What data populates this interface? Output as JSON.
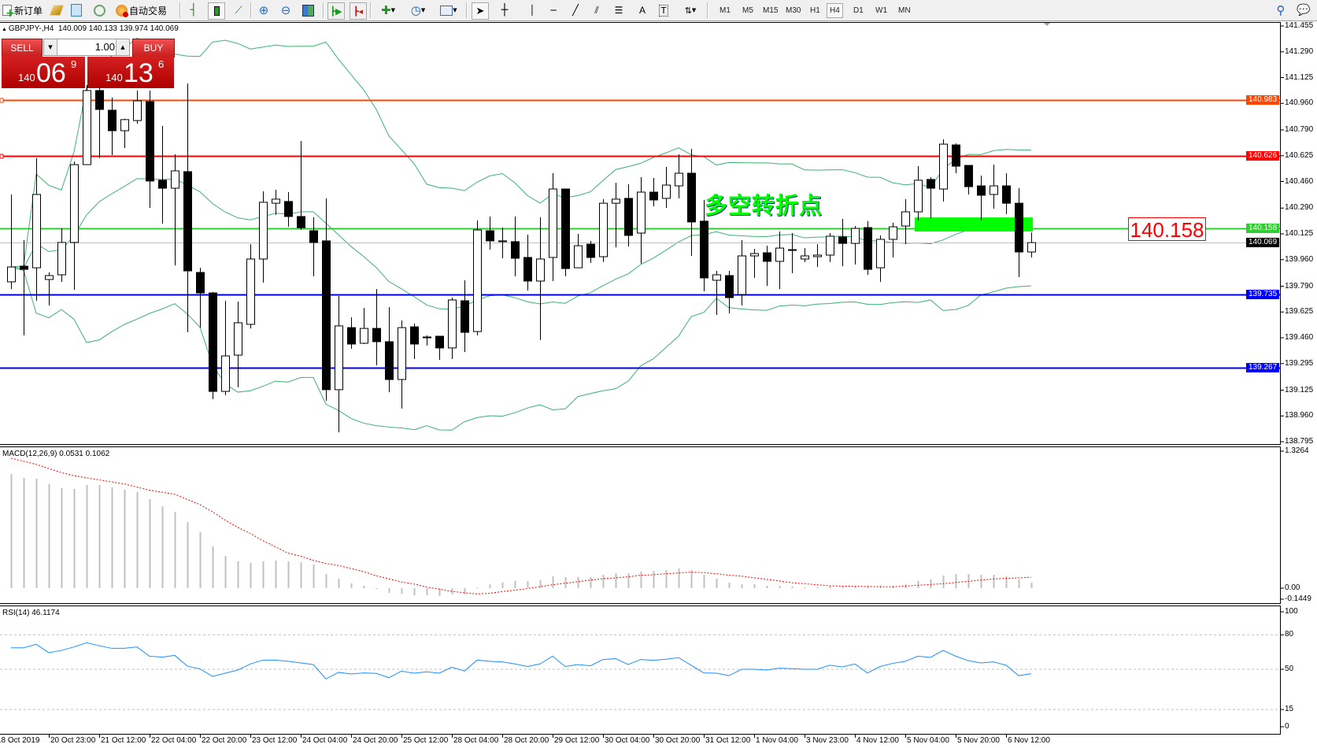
{
  "toolbar": {
    "new_order": "新订单",
    "auto_trading": "自动交易",
    "timeframes": [
      "M1",
      "M5",
      "M15",
      "M30",
      "H1",
      "H4",
      "D1",
      "W1",
      "MN"
    ],
    "active_timeframe": "H4"
  },
  "chart": {
    "header": "GBPJPY-,H4  140.009 140.133 139.974 140.069",
    "symbol": "GBPJPY-",
    "timeframe": "H4"
  },
  "trade_panel": {
    "sell": "SELL",
    "buy": "BUY",
    "lot": "1.00",
    "sell_price": {
      "big": "140",
      "main": "06",
      "sup": "9"
    },
    "buy_price": {
      "big": "140",
      "main": "13",
      "sup": "6"
    }
  },
  "annotation": {
    "text": "多空转折点",
    "price_tag": "140.158",
    "zone_color": "#00ff00",
    "zone_price_low": 140.14,
    "zone_price_high": 140.23
  },
  "levels": [
    {
      "price": 140.983,
      "label": "140.983",
      "color": "#ff4500"
    },
    {
      "price": 140.626,
      "label": "140.626",
      "color": "#ff0000"
    },
    {
      "price": 140.158,
      "label": "140.158",
      "color": "#32cd32"
    },
    {
      "price": 140.069,
      "label": "140.069",
      "color": "#000000",
      "line_color": "#c0c0c0"
    },
    {
      "price": 139.735,
      "label": "139.735",
      "color": "#0000ff"
    },
    {
      "price": 139.267,
      "label": "139.267",
      "color": "#0000ff"
    }
  ],
  "price_axis": {
    "ticks": [
      "141.455",
      "141.290",
      "141.125",
      "140.960",
      "140.790",
      "140.625",
      "140.460",
      "140.290",
      "140.125",
      "139.960",
      "139.790",
      "139.625",
      "139.460",
      "139.295",
      "139.125",
      "138.960",
      "138.795"
    ]
  },
  "time_axis": {
    "labels": [
      "18 Oct 2019",
      "20 Oct 23:00",
      "21 Oct 12:00",
      "22 Oct 04:00",
      "22 Oct 20:00",
      "23 Oct 12:00",
      "24 Oct 04:00",
      "24 Oct 20:00",
      "25 Oct 12:00",
      "28 Oct 04:00",
      "28 Oct 20:00",
      "29 Oct 12:00",
      "30 Oct 04:00",
      "30 Oct 20:00",
      "31 Oct 12:00",
      "1 Nov 04:00",
      "3 Nov 23:00",
      "4 Nov 12:00",
      "5 Nov 04:00",
      "5 Nov 20:00",
      "6 Nov 12:00"
    ]
  },
  "macd": {
    "label": "MACD(12,26,9) 0.0531 0.1062",
    "axis": [
      "1.3264",
      "0.00",
      "-0.1449"
    ],
    "hist_color": "#c0c0c0",
    "signal_color": "#ff0000",
    "hist": [
      1.107,
      1.069,
      1.061,
      1.008,
      0.969,
      0.962,
      1.0,
      1.0,
      0.977,
      0.954,
      0.931,
      0.863,
      0.794,
      0.74,
      0.641,
      0.542,
      0.405,
      0.313,
      0.26,
      0.244,
      0.26,
      0.267,
      0.26,
      0.252,
      0.229,
      0.137,
      0.092,
      0.046,
      0.023,
      -0.008,
      -0.046,
      -0.056,
      -0.069,
      -0.069,
      -0.076,
      -0.061,
      -0.061,
      0.005,
      0.036,
      0.056,
      0.071,
      0.071,
      0.079,
      0.115,
      0.107,
      0.107,
      0.107,
      0.13,
      0.145,
      0.145,
      0.16,
      0.168,
      0.176,
      0.191,
      0.176,
      0.13,
      0.092,
      0.053,
      0.038,
      0.038,
      0.023,
      0.023,
      0.015,
      0.008,
      0.008,
      0.023,
      0.023,
      0.023,
      0.023,
      0.023,
      0.023,
      0.038,
      0.069,
      0.084,
      0.122,
      0.137,
      0.137,
      0.13,
      0.13,
      0.115,
      0.084,
      0.0531
    ],
    "signal": [
      1.26,
      1.23,
      1.2,
      1.16,
      1.12,
      1.09,
      1.07,
      1.05,
      1.03,
      1.01,
      0.98,
      0.95,
      0.93,
      0.91,
      0.86,
      0.81,
      0.74,
      0.66,
      0.59,
      0.53,
      0.46,
      0.4,
      0.34,
      0.31,
      0.27,
      0.24,
      0.22,
      0.19,
      0.16,
      0.12,
      0.09,
      0.06,
      0.04,
      0.01,
      -0.01,
      -0.03,
      -0.045,
      -0.056,
      -0.05,
      -0.033,
      -0.02,
      -0.005,
      0.015,
      0.033,
      0.048,
      0.063,
      0.078,
      0.092,
      0.1,
      0.11,
      0.125,
      0.13,
      0.14,
      0.148,
      0.155,
      0.15,
      0.14,
      0.125,
      0.117,
      0.1,
      0.085,
      0.07,
      0.053,
      0.043,
      0.033,
      0.023,
      0.02,
      0.018,
      0.016,
      0.014,
      0.013,
      0.02,
      0.028,
      0.036,
      0.043,
      0.055,
      0.066,
      0.078,
      0.089,
      0.095,
      0.1,
      0.1062
    ]
  },
  "rsi": {
    "label": "RSI(14) 46.1174",
    "axis": [
      "100",
      "80",
      "50",
      "15",
      "0"
    ],
    "levels": [
      80,
      50,
      15
    ],
    "color": "#1e90ff",
    "values": [
      68.7,
      68.7,
      71.7,
      64.4,
      66.4,
      69.4,
      73.0,
      70.5,
      68.2,
      68.2,
      69.4,
      61.4,
      60.5,
      62.1,
      52.7,
      50.4,
      43.8,
      46.6,
      49.3,
      54.6,
      58.0,
      58.0,
      56.9,
      55.5,
      54.1,
      41.6,
      47.3,
      45.9,
      46.8,
      46.4,
      42.7,
      48.4,
      46.6,
      47.8,
      46.6,
      51.8,
      48.4,
      58.0,
      56.9,
      56.4,
      54.6,
      52.4,
      54.6,
      61.4,
      52.4,
      54.1,
      53.0,
      58.5,
      59.2,
      54.1,
      58.5,
      57.8,
      58.7,
      60.1,
      53.5,
      46.8,
      46.6,
      44.5,
      50.0,
      50.0,
      49.3,
      50.9,
      50.5,
      50.0,
      50.0,
      53.5,
      52.1,
      54.6,
      46.8,
      52.4,
      55.1,
      56.9,
      61.4,
      60.3,
      66.4,
      61.4,
      57.5,
      55.5,
      56.4,
      53.5,
      44.4,
      46.1174
    ]
  },
  "chart_data": {
    "type": "candlestick",
    "indicators": [
      "Bollinger Bands(20,2)",
      "MACD(12,26,9)",
      "RSI(14)"
    ],
    "band_color": "#3cb371",
    "ylim": [
      138.795,
      141.455
    ],
    "candles_ohlc": [
      [
        139.818,
        140.377,
        139.772,
        139.913
      ],
      [
        139.918,
        140.085,
        139.475,
        139.898
      ],
      [
        139.908,
        140.609,
        139.697,
        140.377
      ],
      [
        139.833,
        139.878,
        139.667,
        139.858
      ],
      [
        139.863,
        140.16,
        139.818,
        140.07
      ],
      [
        140.07,
        140.588,
        139.767,
        140.568
      ],
      [
        140.568,
        141.077,
        140.568,
        141.042
      ],
      [
        141.042,
        141.067,
        140.609,
        140.921
      ],
      [
        140.916,
        140.997,
        140.629,
        140.785
      ],
      [
        140.785,
        140.861,
        140.674,
        140.856
      ],
      [
        140.85,
        141.042,
        140.83,
        140.976
      ],
      [
        140.971,
        141.042,
        140.291,
        140.463
      ],
      [
        140.468,
        140.815,
        140.19,
        140.417
      ],
      [
        140.417,
        140.634,
        139.923,
        140.528
      ],
      [
        140.523,
        141.087,
        139.495,
        139.888
      ],
      [
        139.878,
        139.908,
        139.525,
        139.747
      ],
      [
        139.747,
        139.752,
        139.067,
        139.117
      ],
      [
        139.117,
        139.697,
        139.092,
        139.344
      ],
      [
        139.349,
        139.692,
        139.143,
        139.556
      ],
      [
        139.546,
        140.059,
        139.52,
        139.964
      ],
      [
        139.964,
        140.397,
        139.813,
        140.327
      ],
      [
        140.321,
        140.407,
        140.246,
        140.347
      ],
      [
        140.332,
        140.392,
        140.17,
        140.236
      ],
      [
        140.236,
        140.719,
        140.15,
        140.165
      ],
      [
        140.145,
        140.231,
        139.853,
        140.07
      ],
      [
        140.08,
        140.352,
        139.057,
        139.128
      ],
      [
        139.128,
        139.727,
        138.855,
        139.536
      ],
      [
        139.525,
        139.591,
        139.39,
        139.42
      ],
      [
        139.425,
        139.651,
        139.42,
        139.52
      ],
      [
        139.52,
        139.772,
        139.284,
        139.435
      ],
      [
        139.435,
        139.656,
        139.112,
        139.193
      ],
      [
        139.193,
        139.571,
        139.007,
        139.525
      ],
      [
        139.53,
        139.551,
        139.324,
        139.42
      ],
      [
        139.465,
        139.475,
        139.41,
        139.465
      ],
      [
        139.47,
        139.47,
        139.319,
        139.395
      ],
      [
        139.395,
        139.717,
        139.324,
        139.702
      ],
      [
        139.697,
        139.828,
        139.369,
        139.495
      ],
      [
        139.5,
        140.211,
        139.475,
        140.15
      ],
      [
        140.145,
        140.236,
        140.024,
        140.08
      ],
      [
        140.08,
        140.165,
        139.969,
        140.08
      ],
      [
        140.075,
        140.236,
        139.853,
        139.969
      ],
      [
        139.974,
        140.12,
        139.762,
        139.823
      ],
      [
        139.823,
        140.231,
        139.445,
        139.964
      ],
      [
        139.974,
        140.513,
        139.823,
        140.412
      ],
      [
        140.412,
        140.412,
        139.853,
        139.903
      ],
      [
        139.908,
        140.125,
        139.908,
        140.049
      ],
      [
        140.059,
        140.08,
        139.939,
        139.974
      ],
      [
        139.979,
        140.347,
        139.944,
        140.321
      ],
      [
        140.321,
        140.452,
        140.039,
        140.347
      ],
      [
        140.352,
        140.442,
        140.044,
        140.115
      ],
      [
        140.13,
        140.488,
        139.934,
        140.392
      ],
      [
        140.392,
        140.483,
        140.301,
        140.342
      ],
      [
        140.352,
        140.553,
        140.291,
        140.437
      ],
      [
        140.432,
        140.634,
        140.352,
        140.513
      ],
      [
        140.513,
        140.669,
        139.984,
        140.201
      ],
      [
        140.206,
        140.342,
        139.757,
        139.843
      ],
      [
        139.828,
        139.888,
        139.606,
        139.863
      ],
      [
        139.858,
        139.888,
        139.616,
        139.717
      ],
      [
        139.737,
        140.085,
        139.667,
        139.984
      ],
      [
        139.984,
        140.029,
        139.843,
        139.999
      ],
      [
        140.004,
        140.049,
        139.792,
        139.949
      ],
      [
        139.949,
        140.14,
        139.772,
        140.034
      ],
      [
        140.024,
        140.13,
        139.873,
        140.024
      ],
      [
        139.964,
        140.034,
        139.944,
        139.984
      ],
      [
        139.979,
        140.059,
        139.913,
        139.989
      ],
      [
        139.989,
        140.13,
        139.944,
        140.11
      ],
      [
        140.105,
        140.221,
        139.918,
        140.064
      ],
      [
        140.064,
        140.175,
        139.929,
        140.16
      ],
      [
        140.165,
        140.206,
        139.863,
        139.898
      ],
      [
        139.908,
        140.115,
        139.818,
        140.09
      ],
      [
        140.09,
        140.196,
        139.974,
        140.17
      ],
      [
        140.175,
        140.347,
        140.059,
        140.266
      ],
      [
        140.266,
        140.558,
        140.211,
        140.468
      ],
      [
        140.473,
        140.488,
        140.226,
        140.417
      ],
      [
        140.412,
        140.73,
        140.332,
        140.699
      ],
      [
        140.694,
        140.704,
        140.513,
        140.558
      ],
      [
        140.563,
        140.563,
        140.377,
        140.427
      ],
      [
        140.432,
        140.498,
        140.211,
        140.372
      ],
      [
        140.377,
        140.568,
        140.286,
        140.432
      ],
      [
        140.432,
        140.513,
        140.251,
        140.321
      ],
      [
        140.321,
        140.417,
        139.848,
        140.009
      ],
      [
        140.009,
        140.133,
        139.974,
        140.069
      ]
    ]
  }
}
